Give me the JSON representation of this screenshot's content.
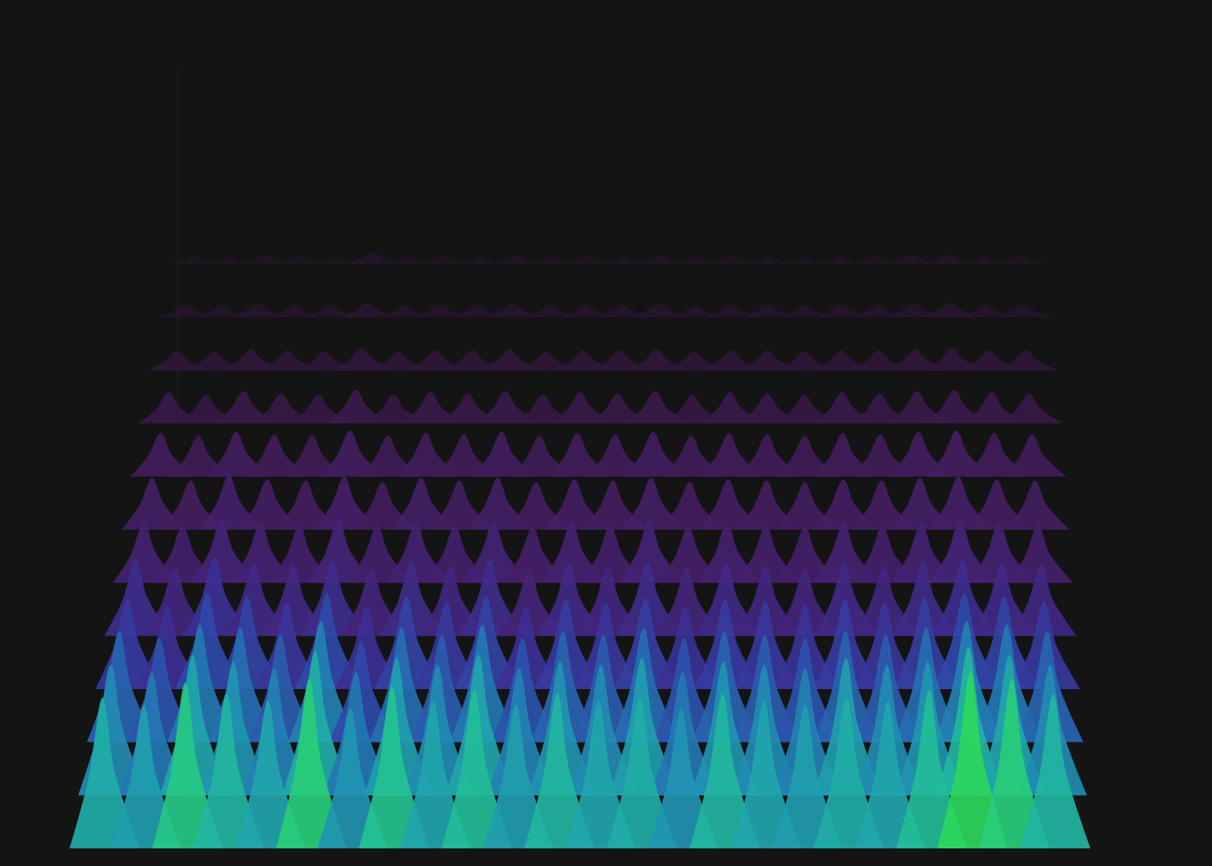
{
  "chart_data": {
    "type": "surface",
    "tick_labels": false,
    "zlim": [
      0,
      1
    ],
    "cells": [
      [
        0.82,
        0.78,
        0.9,
        0.84,
        0.8,
        0.92,
        0.76,
        0.88,
        0.8,
        0.86,
        0.78,
        0.84,
        0.8,
        0.82,
        0.76,
        0.84,
        0.8,
        0.78,
        0.82,
        0.8,
        0.86,
        0.96,
        0.92,
        0.84
      ],
      [
        0.74,
        0.7,
        0.8,
        0.76,
        0.72,
        0.82,
        0.7,
        0.78,
        0.74,
        0.8,
        0.72,
        0.76,
        0.74,
        0.78,
        0.7,
        0.76,
        0.74,
        0.72,
        0.78,
        0.74,
        0.76,
        0.84,
        0.8,
        0.74
      ],
      [
        0.66,
        0.62,
        0.7,
        0.68,
        0.64,
        0.72,
        0.6,
        0.68,
        0.64,
        0.7,
        0.62,
        0.66,
        0.64,
        0.68,
        0.62,
        0.66,
        0.64,
        0.62,
        0.66,
        0.64,
        0.68,
        0.72,
        0.7,
        0.66
      ],
      [
        0.56,
        0.52,
        0.6,
        0.58,
        0.54,
        0.6,
        0.52,
        0.58,
        0.55,
        0.58,
        0.52,
        0.56,
        0.54,
        0.57,
        0.52,
        0.56,
        0.55,
        0.53,
        0.56,
        0.54,
        0.57,
        0.6,
        0.58,
        0.55
      ],
      [
        0.5,
        0.46,
        0.52,
        0.48,
        0.47,
        0.5,
        0.45,
        0.49,
        0.46,
        0.5,
        0.44,
        0.48,
        0.46,
        0.49,
        0.45,
        0.48,
        0.46,
        0.45,
        0.48,
        0.46,
        0.49,
        0.5,
        0.48,
        0.47
      ],
      [
        0.42,
        0.4,
        0.44,
        0.42,
        0.4,
        0.44,
        0.4,
        0.42,
        0.4,
        0.43,
        0.39,
        0.42,
        0.4,
        0.43,
        0.39,
        0.41,
        0.4,
        0.39,
        0.42,
        0.4,
        0.42,
        0.44,
        0.42,
        0.4
      ],
      [
        0.38,
        0.36,
        0.4,
        0.37,
        0.36,
        0.39,
        0.35,
        0.38,
        0.36,
        0.38,
        0.35,
        0.37,
        0.36,
        0.38,
        0.35,
        0.37,
        0.36,
        0.35,
        0.37,
        0.36,
        0.38,
        0.39,
        0.37,
        0.36
      ],
      [
        0.34,
        0.32,
        0.35,
        0.33,
        0.32,
        0.36,
        0.32,
        0.34,
        0.33,
        0.35,
        0.32,
        0.34,
        0.33,
        0.35,
        0.32,
        0.34,
        0.33,
        0.32,
        0.34,
        0.33,
        0.35,
        0.36,
        0.34,
        0.33
      ],
      [
        0.26,
        0.24,
        0.27,
        0.25,
        0.24,
        0.28,
        0.24,
        0.26,
        0.25,
        0.27,
        0.24,
        0.26,
        0.25,
        0.27,
        0.24,
        0.26,
        0.25,
        0.24,
        0.26,
        0.25,
        0.27,
        0.28,
        0.26,
        0.25
      ],
      [
        0.18,
        0.17,
        0.19,
        0.18,
        0.17,
        0.2,
        0.17,
        0.18,
        0.18,
        0.19,
        0.17,
        0.18,
        0.18,
        0.19,
        0.17,
        0.18,
        0.18,
        0.17,
        0.18,
        0.18,
        0.19,
        0.2,
        0.18,
        0.18
      ],
      [
        0.12,
        0.11,
        0.13,
        0.12,
        0.11,
        0.14,
        0.11,
        0.12,
        0.12,
        0.13,
        0.11,
        0.12,
        0.12,
        0.13,
        0.11,
        0.12,
        0.12,
        0.11,
        0.12,
        0.12,
        0.13,
        0.14,
        0.12,
        0.12
      ],
      [
        0.08,
        0.07,
        0.09,
        0.08,
        0.07,
        0.12,
        0.07,
        0.08,
        0.08,
        0.09,
        0.07,
        0.08,
        0.08,
        0.09,
        0.07,
        0.08,
        0.08,
        0.07,
        0.08,
        0.08,
        0.09,
        0.1,
        0.08,
        0.08
      ]
    ]
  }
}
